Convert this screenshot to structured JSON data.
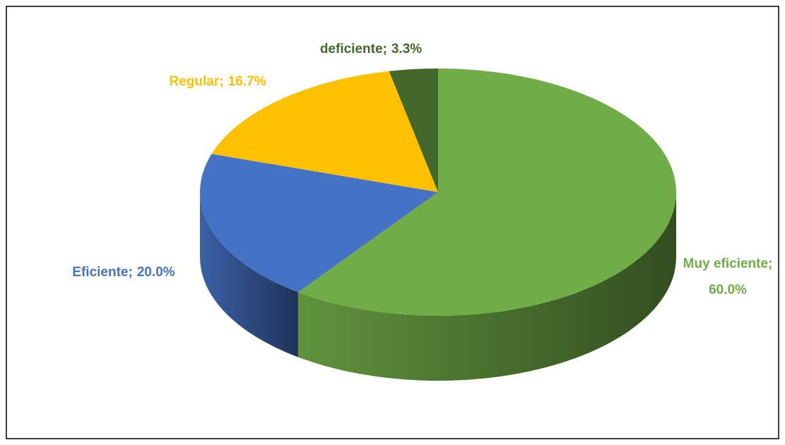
{
  "chart_data": {
    "type": "pie",
    "categories": [
      "Muy eficiente;",
      "Eficiente;",
      "Regular;",
      "deficiente;"
    ],
    "values": [
      60.0,
      20.0,
      16.7,
      3.3
    ],
    "value_labels": [
      "60.0%",
      "20.0%",
      "16.7%",
      "3.3%"
    ],
    "colors": [
      "#70ad47",
      "#4472c4",
      "#ffc000",
      "#43682b"
    ],
    "label_colors": [
      "#70ad47",
      "#4472c4",
      "#ffc000",
      "#43682b"
    ]
  }
}
